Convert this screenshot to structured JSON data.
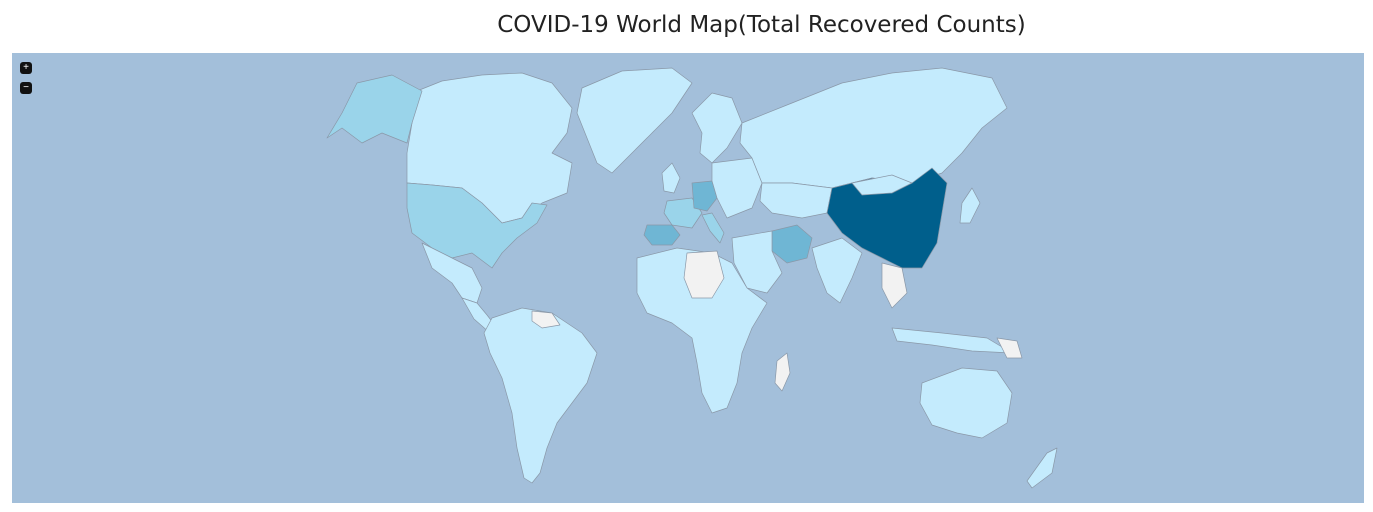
{
  "page": {
    "title": "COVID-19 World Map(Total Recovered Counts)"
  },
  "map": {
    "zoom_in_icon": "+",
    "zoom_out_icon": "−",
    "colors": {
      "ocean": "#a3bfda",
      "level0_no_data": "#f2f2f2",
      "level1_low": "#c4ebfd",
      "level2": "#9ad4ea",
      "level3": "#6fb6d4",
      "level4": "#4f9dc2",
      "level5_highest": "#005f8c"
    },
    "highlighted_regions": [
      {
        "name": "China",
        "level": 5
      },
      {
        "name": "Spain",
        "level": 3
      },
      {
        "name": "Germany",
        "level": 3
      },
      {
        "name": "Iran",
        "level": 3
      },
      {
        "name": "Italy",
        "level": 2
      },
      {
        "name": "France",
        "level": 2
      },
      {
        "name": "United States",
        "level": 2
      },
      {
        "name": "Alaska",
        "level": 2
      }
    ]
  }
}
